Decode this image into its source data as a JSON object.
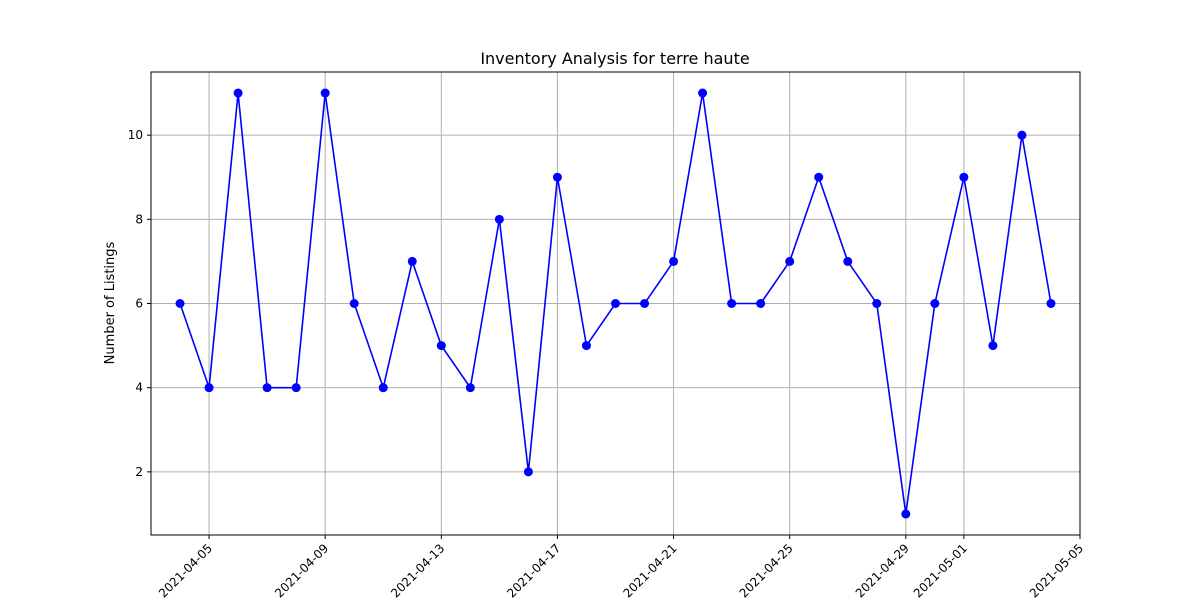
{
  "chart_data": {
    "type": "line",
    "title": "Inventory Analysis for terre haute",
    "xlabel": "",
    "ylabel": "Number of Listings",
    "x": [
      "2021-04-04",
      "2021-04-05",
      "2021-04-06",
      "2021-04-07",
      "2021-04-08",
      "2021-04-09",
      "2021-04-10",
      "2021-04-11",
      "2021-04-12",
      "2021-04-13",
      "2021-04-14",
      "2021-04-15",
      "2021-04-16",
      "2021-04-17",
      "2021-04-18",
      "2021-04-19",
      "2021-04-20",
      "2021-04-21",
      "2021-04-22",
      "2021-04-23",
      "2021-04-24",
      "2021-04-25",
      "2021-04-26",
      "2021-04-27",
      "2021-04-28",
      "2021-04-29",
      "2021-04-30",
      "2021-05-01",
      "2021-05-02",
      "2021-05-03",
      "2021-05-04"
    ],
    "series": [
      {
        "values": [
          6,
          4,
          11,
          4,
          4,
          11,
          6,
          4,
          7,
          5,
          4,
          8,
          2,
          9,
          5,
          6,
          6,
          7,
          11,
          6,
          6,
          7,
          9,
          7,
          6,
          1,
          6,
          9,
          5,
          10,
          6
        ]
      }
    ],
    "xticks": [
      "2021-04-05",
      "2021-04-09",
      "2021-04-13",
      "2021-04-17",
      "2021-04-21",
      "2021-04-25",
      "2021-04-29",
      "2021-05-01",
      "2021-05-05"
    ],
    "yticks": [
      2,
      4,
      6,
      8,
      10
    ],
    "xlim": [
      "2021-04-03",
      "2021-05-05"
    ],
    "ylim": [
      0.5,
      11.5
    ],
    "grid": true,
    "line_color": "#0000ff",
    "marker": "circle"
  }
}
